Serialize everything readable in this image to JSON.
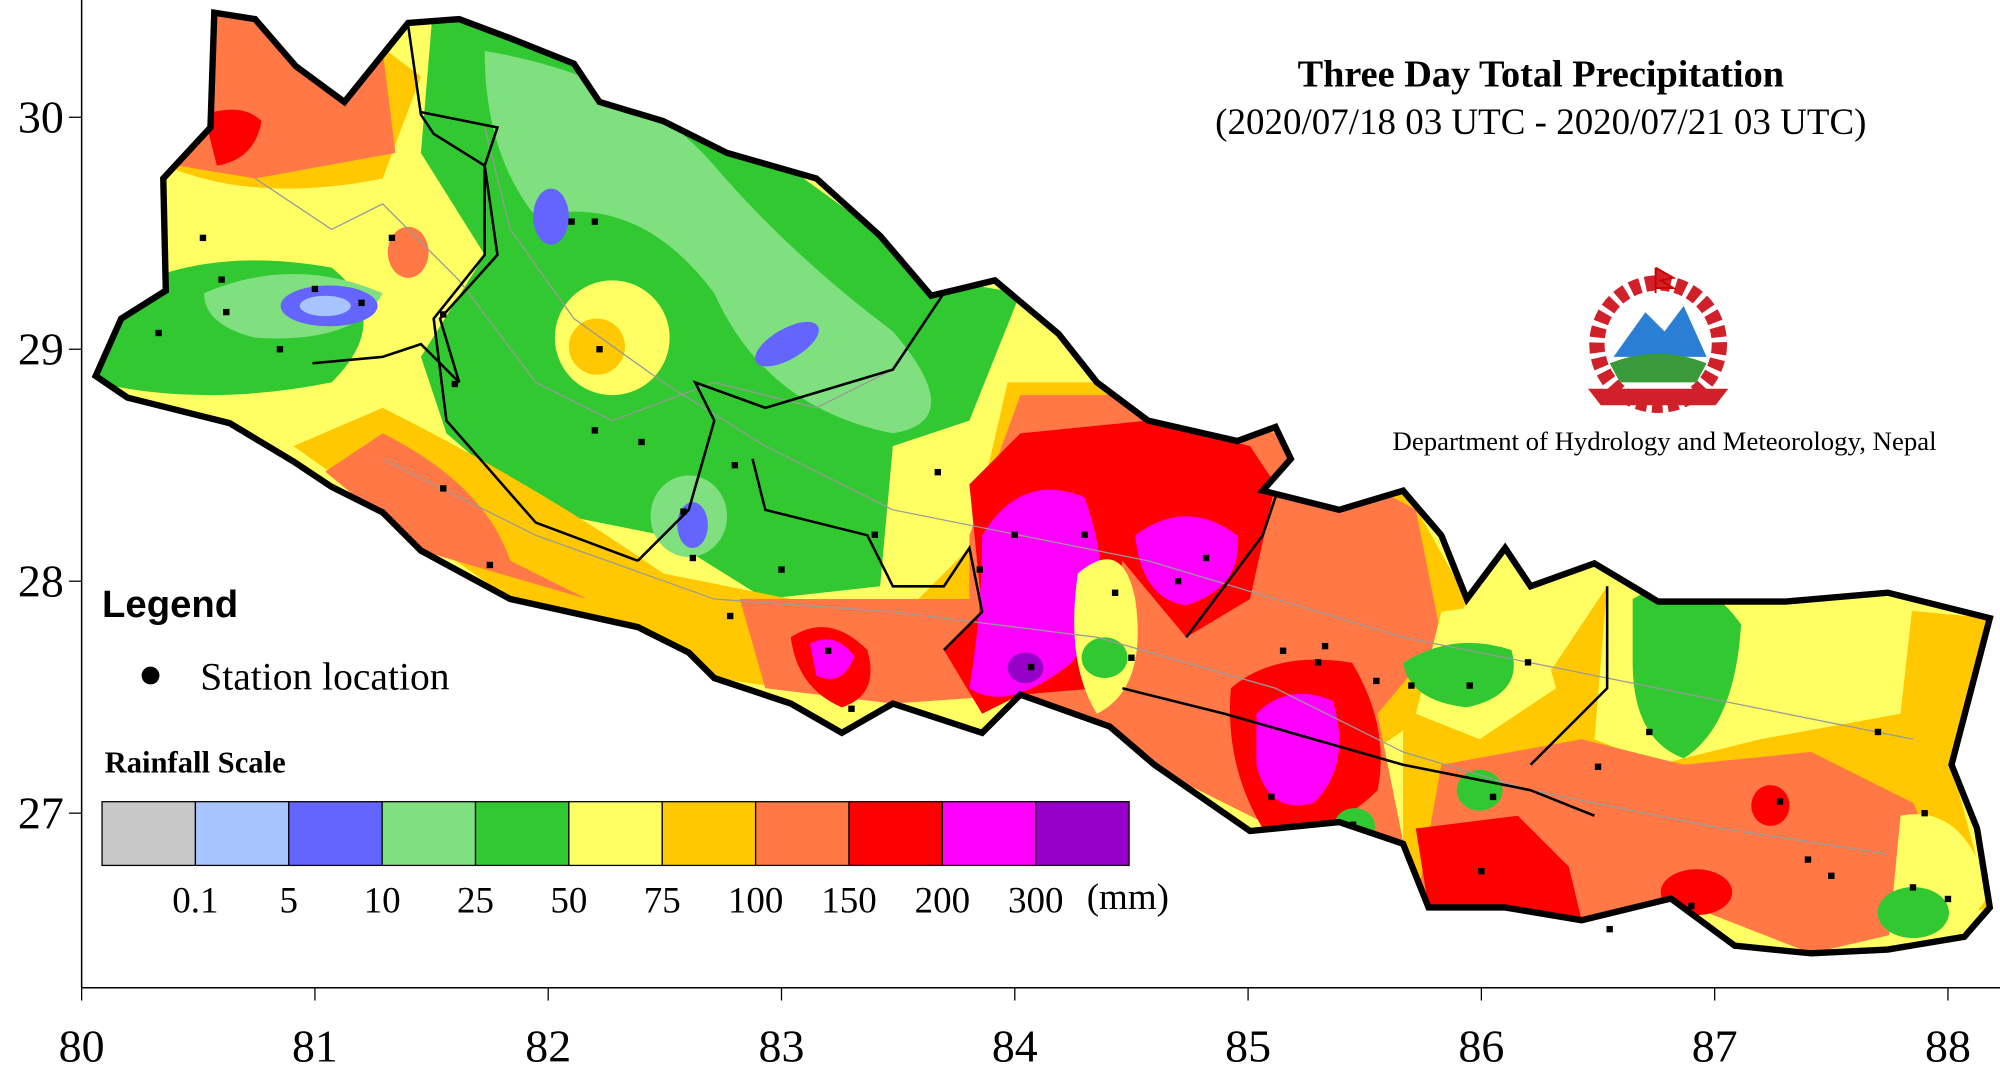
{
  "title": "Three Day Total Precipitation",
  "subtitle": "(2020/07/18 03 UTC - 2020/07/21 03 UTC)",
  "department": "Department of Hydrology and Meteorology, Nepal",
  "emblem": {
    "label": "Emblem of Nepal"
  },
  "legend": {
    "heading": "Legend",
    "station_label": "Station location",
    "scale_title": "Rainfall Scale",
    "unit": "(mm)",
    "breaks": [
      "0.1",
      "5",
      "10",
      "25",
      "50",
      "75",
      "100",
      "150",
      "200",
      "300"
    ],
    "colors": [
      "#c8c8c8",
      "#a8c4ff",
      "#6464ff",
      "#80e080",
      "#32c832",
      "#ffff64",
      "#ffc800",
      "#ff7846",
      "#ff0000",
      "#ff00ff",
      "#9600c8"
    ]
  },
  "axes": {
    "x_ticks": [
      "80",
      "81",
      "82",
      "83",
      "84",
      "85",
      "86",
      "87",
      "88"
    ],
    "y_ticks": [
      "30",
      "29",
      "28",
      "27"
    ]
  },
  "stations": [
    [
      80.33,
      29.07
    ],
    [
      80.52,
      29.48
    ],
    [
      80.6,
      29.3
    ],
    [
      80.62,
      29.16
    ],
    [
      80.85,
      29.0
    ],
    [
      81.0,
      29.26
    ],
    [
      81.2,
      29.2
    ],
    [
      81.33,
      29.48
    ],
    [
      81.55,
      29.15
    ],
    [
      81.6,
      28.85
    ],
    [
      81.55,
      28.4
    ],
    [
      81.75,
      28.07
    ],
    [
      82.1,
      29.55
    ],
    [
      82.2,
      29.55
    ],
    [
      82.22,
      29.0
    ],
    [
      82.2,
      28.65
    ],
    [
      82.4,
      28.6
    ],
    [
      82.58,
      28.3
    ],
    [
      82.62,
      28.1
    ],
    [
      82.8,
      28.5
    ],
    [
      82.78,
      27.85
    ],
    [
      83.0,
      28.05
    ],
    [
      83.2,
      27.7
    ],
    [
      83.3,
      27.45
    ],
    [
      83.4,
      28.2
    ],
    [
      83.67,
      28.47
    ],
    [
      83.85,
      28.05
    ],
    [
      84.0,
      28.2
    ],
    [
      84.07,
      27.63
    ],
    [
      84.3,
      28.2
    ],
    [
      84.43,
      27.95
    ],
    [
      84.5,
      27.67
    ],
    [
      84.7,
      28.0
    ],
    [
      84.82,
      28.1
    ],
    [
      85.15,
      27.7
    ],
    [
      85.3,
      27.65
    ],
    [
      85.33,
      27.72
    ],
    [
      85.55,
      27.57
    ],
    [
      85.1,
      27.07
    ],
    [
      85.45,
      26.95
    ],
    [
      85.7,
      27.55
    ],
    [
      85.95,
      27.55
    ],
    [
      86.05,
      27.07
    ],
    [
      86.2,
      27.65
    ],
    [
      86.5,
      27.2
    ],
    [
      86.72,
      27.35
    ],
    [
      86.9,
      26.6
    ],
    [
      87.28,
      27.05
    ],
    [
      87.4,
      26.8
    ],
    [
      87.5,
      26.73
    ],
    [
      87.9,
      27.0
    ],
    [
      87.85,
      26.68
    ],
    [
      88.0,
      26.63
    ],
    [
      87.7,
      27.35
    ],
    [
      86.0,
      26.75
    ],
    [
      86.55,
      26.5
    ]
  ]
}
